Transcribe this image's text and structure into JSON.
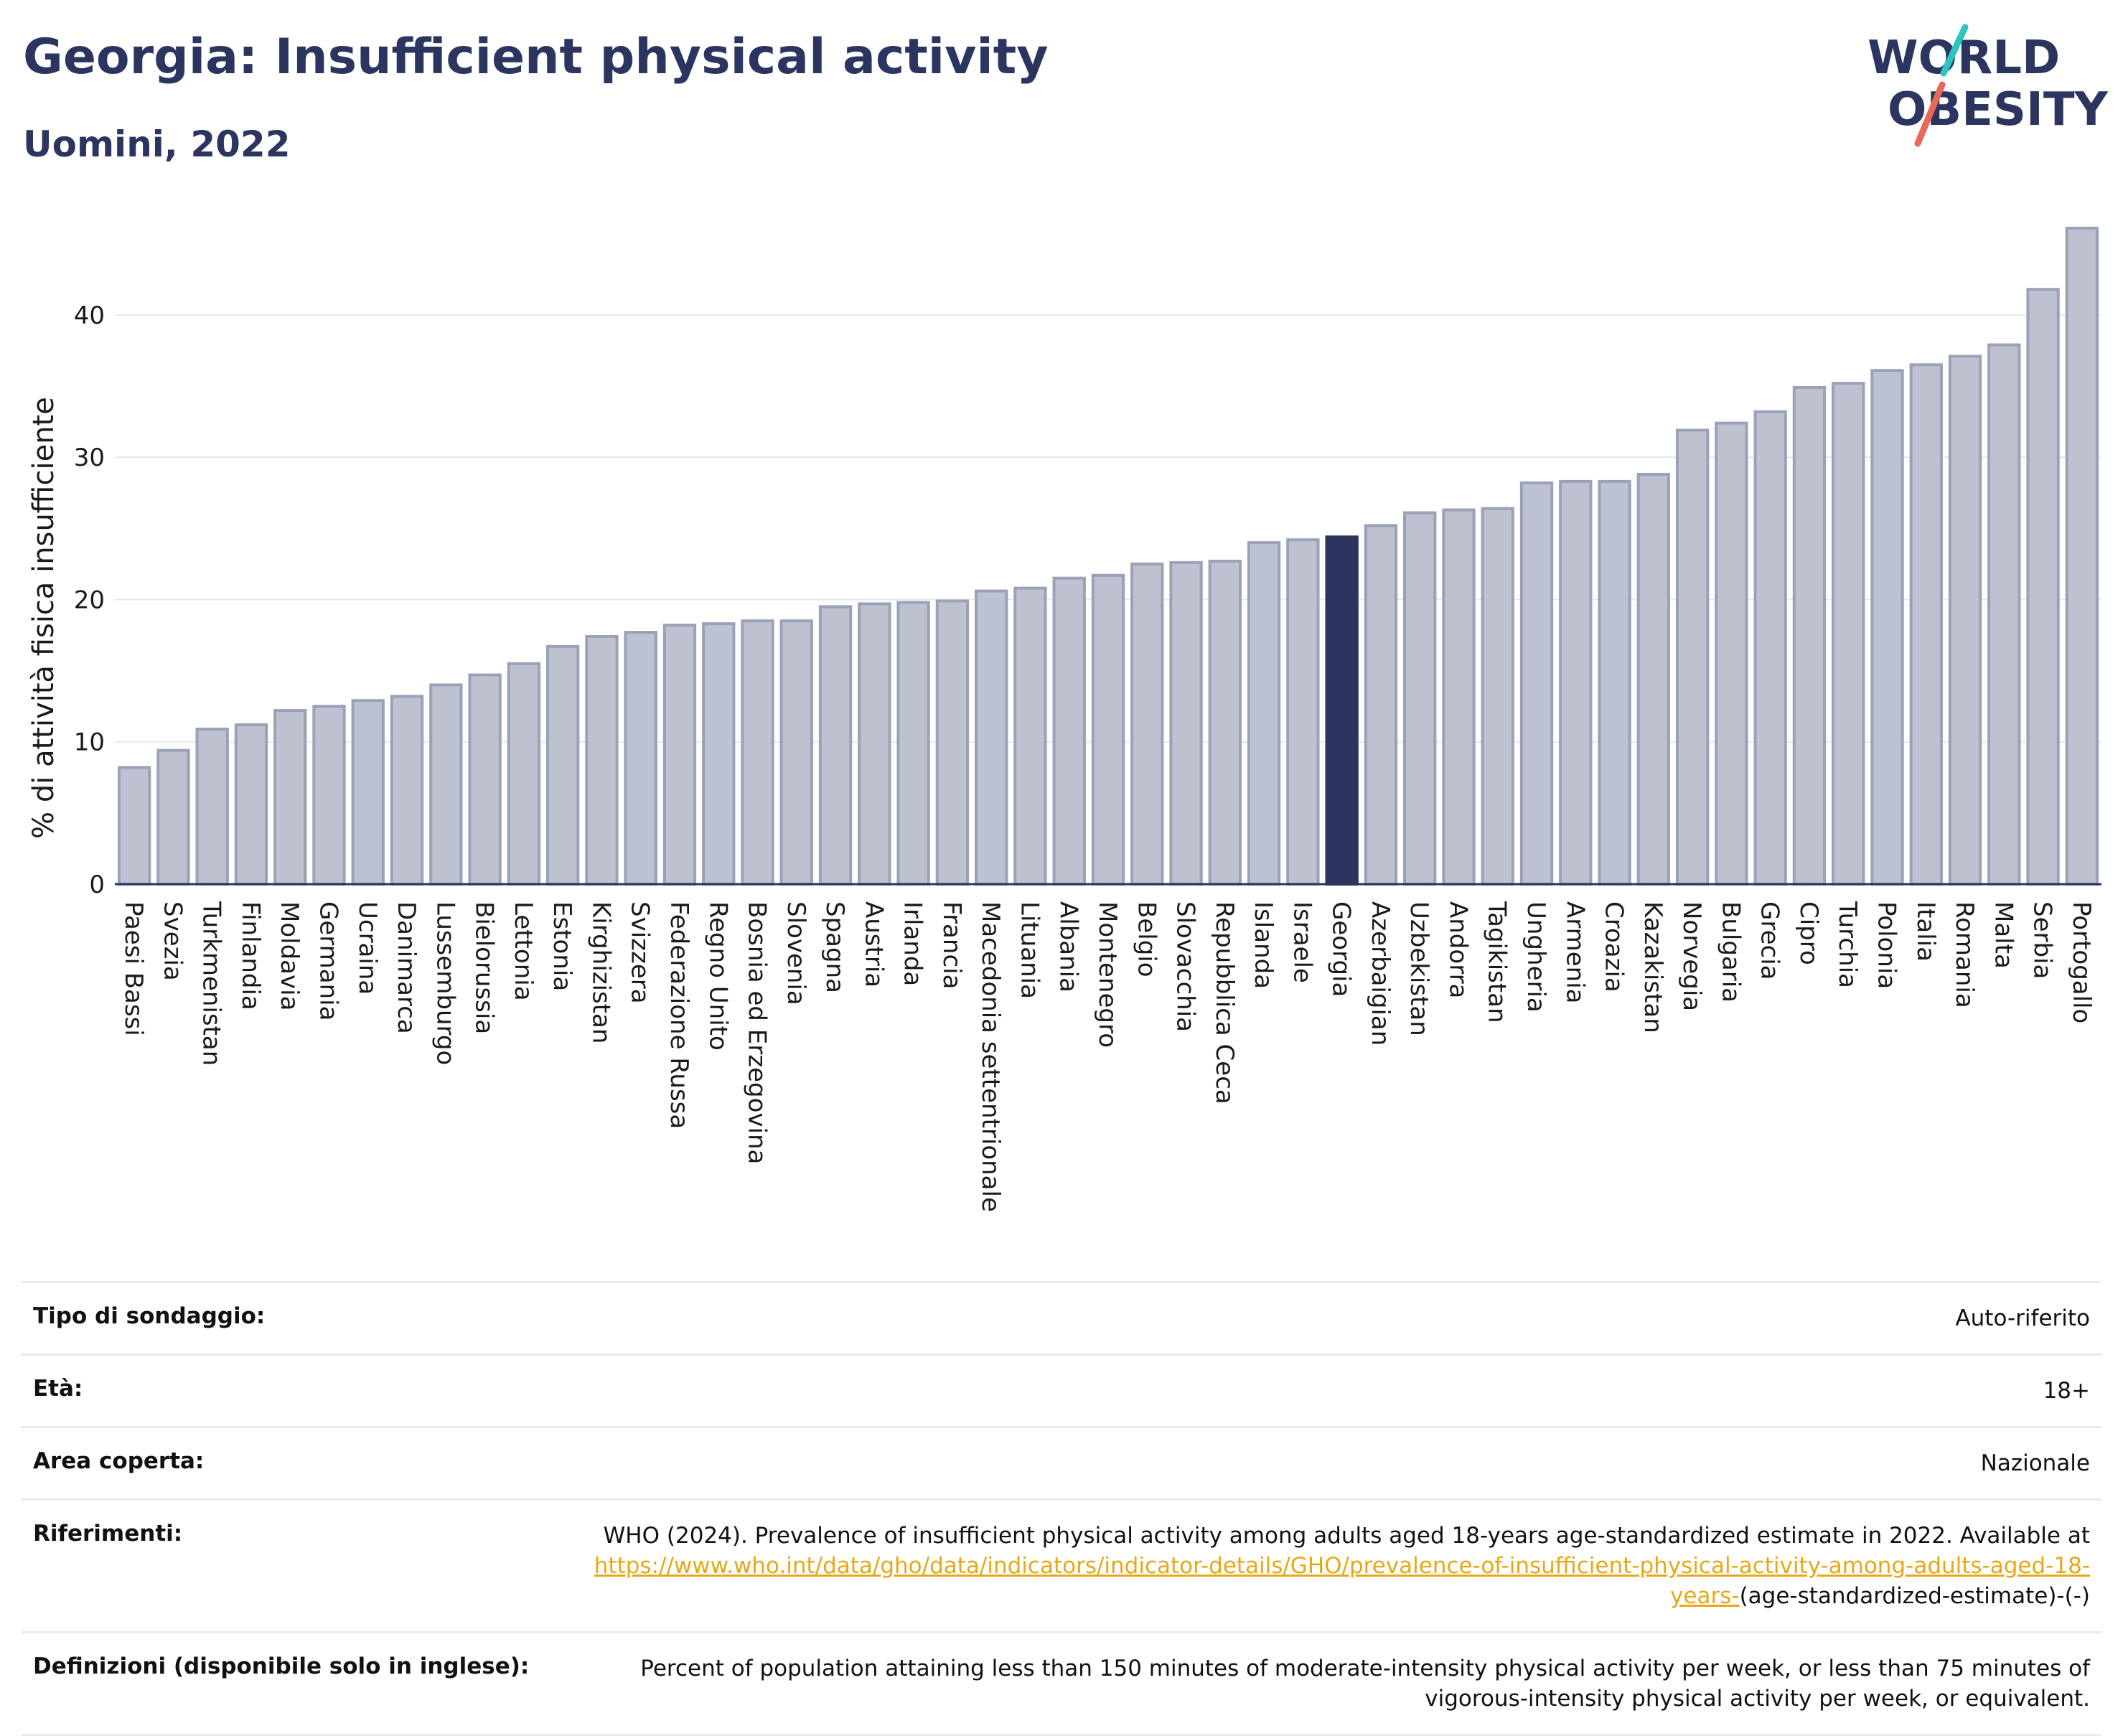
{
  "header": {
    "title": "Georgia: Insufficient physical activity",
    "subtitle": "Uomini, 2022"
  },
  "logo": {
    "line1": "WORLD",
    "line2": "OBESITY",
    "brand_colors": {
      "navy": "#2b3560",
      "teal": "#2ec4c4",
      "coral": "#e8685a"
    }
  },
  "colors": {
    "bar": "#bec2d0",
    "bar_border": "#9ba1b6",
    "highlight": "#2b3560",
    "grid": "#e5e7eb",
    "axis": "#2b3560"
  },
  "chart_data": {
    "type": "bar",
    "title": "Georgia: Insufficient physical activity",
    "subtitle": "Uomini, 2022",
    "ylabel": "% di attività fisica insufficiente",
    "xlabel": "",
    "ylim": [
      0,
      46.5
    ],
    "yticks": [
      0,
      10,
      20,
      30,
      40
    ],
    "grid": true,
    "highlight": "Georgia",
    "categories": [
      "Paesi Bassi",
      "Svezia",
      "Turkmenistan",
      "Finlandia",
      "Moldavia",
      "Germania",
      "Ucraina",
      "Danimarca",
      "Lussemburgo",
      "Bielorussia",
      "Lettonia",
      "Estonia",
      "Kirghizistan",
      "Svizzera",
      "Federazione Russa",
      "Regno Unito",
      "Bosnia ed Erzegovina",
      "Slovenia",
      "Spagna",
      "Austria",
      "Irlanda",
      "Francia",
      "Macedonia settentrionale",
      "Lituania",
      "Albania",
      "Montenegro",
      "Belgio",
      "Slovacchia",
      "Repubblica Ceca",
      "Islanda",
      "Israele",
      "Georgia",
      "Azerbaigian",
      "Uzbekistan",
      "Andorra",
      "Tagikistan",
      "Ungheria",
      "Armenia",
      "Croazia",
      "Kazakistan",
      "Norvegia",
      "Bulgaria",
      "Grecia",
      "Cipro",
      "Turchia",
      "Polonia",
      "Italia",
      "Romania",
      "Malta",
      "Serbia",
      "Portogallo"
    ],
    "values": [
      8.2,
      9.4,
      10.9,
      11.2,
      12.2,
      12.5,
      12.9,
      13.2,
      14.0,
      14.7,
      15.5,
      16.7,
      17.4,
      17.7,
      18.2,
      18.3,
      18.5,
      18.5,
      19.5,
      19.7,
      19.8,
      19.9,
      20.6,
      20.8,
      21.5,
      21.7,
      22.5,
      22.6,
      22.7,
      24.0,
      24.2,
      24.4,
      25.2,
      26.1,
      26.3,
      26.4,
      28.2,
      28.3,
      28.3,
      28.8,
      31.9,
      32.4,
      33.2,
      34.9,
      35.2,
      36.1,
      36.5,
      37.1,
      37.9,
      41.8,
      46.1
    ]
  },
  "meta": {
    "rows": [
      {
        "label": "Tipo di sondaggio:",
        "value": "Auto-riferito"
      },
      {
        "label": "Età:",
        "value": "18+"
      },
      {
        "label": "Area coperta:",
        "value": "Nazionale"
      }
    ],
    "references": {
      "label": "Riferimenti:",
      "text": "WHO (2024). Prevalence of insufficient physical activity among adults aged 18-years age-standardized estimate in 2022. Available at ",
      "link": "https://www.who.int/data/gho/data/indicators/indicator-details/GHO/prevalence-of-insufficient-physical-activity-among-adults-aged-18-years-",
      "suffix": "(age-standardized-estimate)-(-)"
    },
    "definitions": {
      "label": "Definizioni (disponibile solo in inglese):",
      "text": "Percent of population attaining less than 150 minutes of moderate-intensity physical activity per week, or less than 75 minutes of vigorous-intensity physical activity per week, or equivalent."
    }
  }
}
